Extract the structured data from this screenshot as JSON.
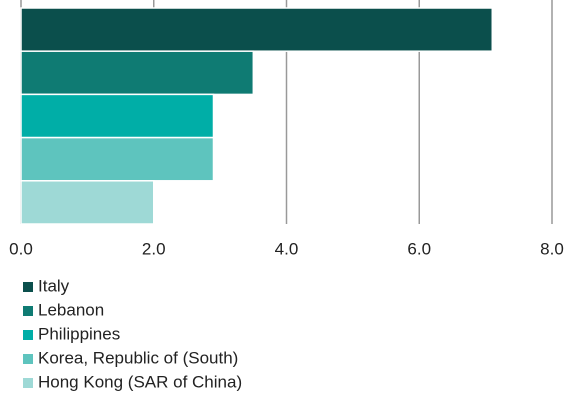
{
  "chart_data": {
    "type": "bar",
    "orientation": "horizontal",
    "series": [
      {
        "name": "Italy",
        "color": "#0b4f4c",
        "values": [
          7.1
        ]
      },
      {
        "name": "Lebanon",
        "color": "#0f7b73",
        "values": [
          3.5
        ]
      },
      {
        "name": "Philippines",
        "color": "#00aea7",
        "values": [
          2.9
        ]
      },
      {
        "name": "Korea, Republic of (South)",
        "color": "#5ec4be",
        "values": [
          2.9
        ]
      },
      {
        "name": "Hong Kong (SAR of China)",
        "color": "#9ed9d6",
        "values": [
          2.0
        ]
      }
    ],
    "xlim": [
      0,
      8
    ],
    "xticks": [
      {
        "value": 0,
        "label": "0.0"
      },
      {
        "value": 2,
        "label": "2.0"
      },
      {
        "value": 4,
        "label": "4.0"
      },
      {
        "value": 6,
        "label": "6.0"
      },
      {
        "value": 8,
        "label": "8.0"
      }
    ],
    "grid": true
  }
}
